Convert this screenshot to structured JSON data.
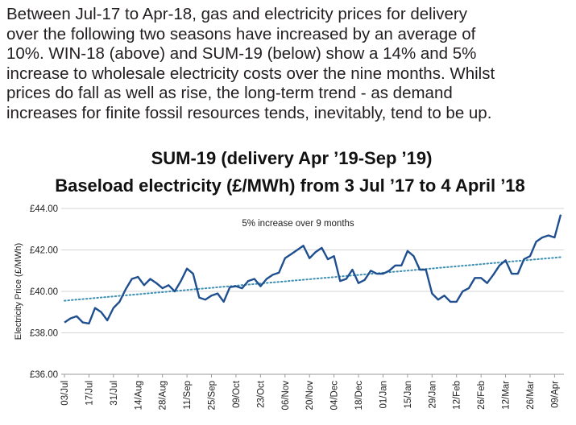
{
  "intro_lines": [
    "Between Jul-17 to Apr-18, gas and electricity prices for delivery",
    "over the following two seasons have increased by an average of",
    "10%. WIN-18 (above) and SUM-19 (below) show a 14% and 5%",
    "increase to wholesale electricity costs over the nine months. Whilst",
    "prices do fall as well as rise, the long-term trend - as demand",
    "increases for finite fossil resources tends, inevitably, tend to be up."
  ],
  "chart_data": {
    "type": "line",
    "title": "SUM-19 (delivery Apr ’19-Sep ’19)",
    "subtitle": "Baseload electricity (£/MWh) from 3 Jul ’17 to 4 April ’18",
    "y_label": "Electricity Price (£/MWh)",
    "annotation": "5% increase over 9 months",
    "categories": [
      "03/Jul",
      null,
      null,
      null,
      "17/Jul",
      null,
      null,
      null,
      "31/Jul",
      null,
      null,
      null,
      "14/Aug",
      null,
      null,
      null,
      "28/Aug",
      null,
      null,
      null,
      "11/Sep",
      null,
      null,
      null,
      "25/Sep",
      null,
      null,
      null,
      "09/Oct",
      null,
      null,
      null,
      "23/Oct",
      null,
      null,
      null,
      "06/Nov",
      null,
      null,
      null,
      "20/Nov",
      null,
      null,
      null,
      "04/Dec",
      null,
      null,
      null,
      "18/Dec",
      null,
      null,
      null,
      "01/Jan",
      null,
      null,
      null,
      "15/Jan",
      null,
      null,
      null,
      "29/Jan",
      null,
      null,
      null,
      "12/Feb",
      null,
      null,
      null,
      "26/Feb",
      null,
      null,
      null,
      "12/Mar",
      null,
      null,
      null,
      "26/Mar",
      null,
      null,
      null,
      "09/Apr",
      null
    ],
    "series": [
      {
        "color": "#1f4f8f",
        "values": [
          38.5,
          38.7,
          38.8,
          38.5,
          38.45,
          39.2,
          39.0,
          38.6,
          39.2,
          39.5,
          40.1,
          40.6,
          40.7,
          40.3,
          40.6,
          40.4,
          40.15,
          40.3,
          40.0,
          40.5,
          41.1,
          40.85,
          39.7,
          39.6,
          39.8,
          39.9,
          39.5,
          40.2,
          40.25,
          40.15,
          40.5,
          40.6,
          40.25,
          40.6,
          40.8,
          40.9,
          41.6,
          41.8,
          42.0,
          42.2,
          41.6,
          41.9,
          42.1,
          41.55,
          41.7,
          40.5,
          40.6,
          41.05,
          40.4,
          40.55,
          41.0,
          40.85,
          40.85,
          41.0,
          41.25,
          41.25,
          41.95,
          41.7,
          41.05,
          41.05,
          39.9,
          39.6,
          39.8,
          39.5,
          39.5,
          40.0,
          40.15,
          40.65,
          40.65,
          40.4,
          40.8,
          41.25,
          41.5,
          40.85,
          40.85,
          41.55,
          41.7,
          42.4,
          42.6,
          42.7,
          42.6,
          43.7
        ]
      }
    ],
    "trend": {
      "color": "#3b8fb3",
      "values": [
        39.55,
        41.65
      ]
    },
    "ylim": [
      36,
      44
    ],
    "yticks": [
      {
        "value": 36,
        "label": "£36.00"
      },
      {
        "value": 38,
        "label": "£38.00"
      },
      {
        "value": 40,
        "label": "£40.00"
      },
      {
        "value": 42,
        "label": "£42.00"
      },
      {
        "value": 44,
        "label": "£44.00"
      }
    ],
    "grid": true
  }
}
